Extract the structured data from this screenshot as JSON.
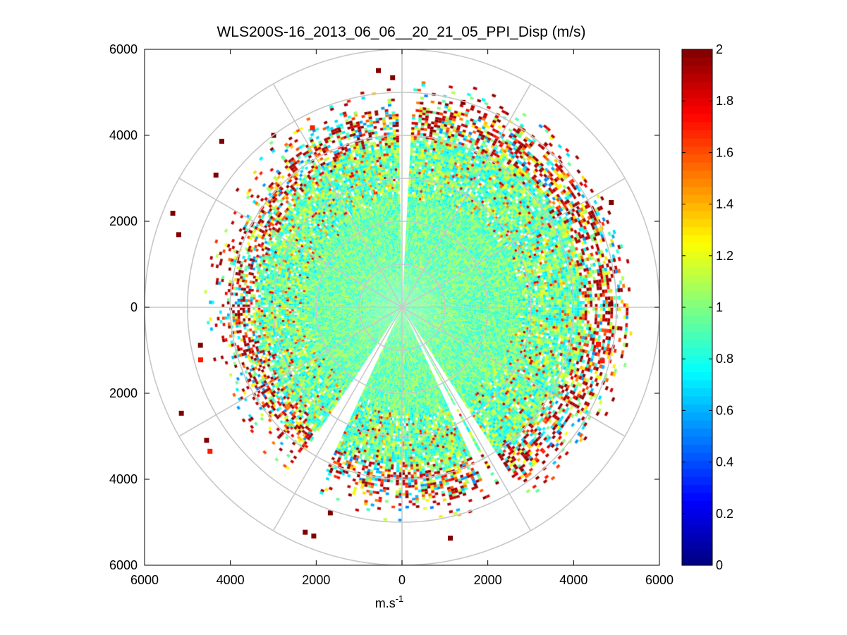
{
  "chart_data": {
    "type": "heatmap",
    "projection": "polar-ppi",
    "title": "WLS200S-16_2013_06_06__20_21_05_PPI_Disp (m/s)",
    "xlabel": "m.s",
    "xlabel_superscript": "-1",
    "ylabel": "",
    "xlim": [
      -6000,
      6000
    ],
    "ylim": [
      -6000,
      6000
    ],
    "x_ticks": [
      -6000,
      -4000,
      -2000,
      0,
      2000,
      4000,
      6000
    ],
    "x_tick_labels": [
      "6000",
      "4000",
      "2000",
      "0",
      "2000",
      "4000",
      "6000"
    ],
    "y_ticks": [
      6000,
      4000,
      2000,
      0,
      -2000,
      -4000,
      -6000
    ],
    "y_tick_labels": [
      "6000",
      "4000",
      "2000",
      "0",
      "2000",
      "4000",
      "6000"
    ],
    "polar_grid": {
      "range_rings": [
        1000,
        2000,
        3000,
        4000,
        5000,
        6000
      ],
      "spoke_angles_deg": [
        0,
        30,
        60,
        90,
        120,
        150,
        180,
        210,
        240,
        270,
        300,
        330
      ]
    },
    "colorbar": {
      "min": 0,
      "max": 2,
      "ticks": [
        0,
        0.2,
        0.4,
        0.6,
        0.8,
        1,
        1.2,
        1.4,
        1.6,
        1.8,
        2
      ],
      "tick_labels": [
        "0",
        "0.2",
        "0.4",
        "0.6",
        "0.8",
        "1",
        "1.2",
        "1.4",
        "1.6",
        "1.8",
        "2"
      ],
      "colormap": "jet"
    },
    "scan": {
      "max_range": 5400,
      "gates": 90,
      "beams": 360,
      "missing_sectors_deg": [
        [
          -1,
          2
        ],
        [
          205,
          213
        ],
        [
          147,
          150
        ],
        [
          152,
          154
        ]
      ],
      "approx_profile": [
        {
          "range_max": 2500,
          "typical_value": 0.95
        },
        {
          "range_max": 4000,
          "typical_value": 1.0
        },
        {
          "range_max": 5400,
          "typical_value": 1.6
        }
      ],
      "speckle_sample": "1.18, 0.97, 0.83, 1.05, 1.93, 0.62, 1.41, 2.0, 0.91, 1.12"
    }
  }
}
